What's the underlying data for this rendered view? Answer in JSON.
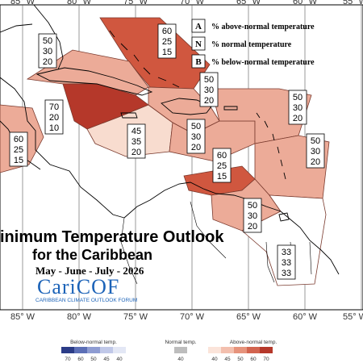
{
  "map": {
    "longitudes_top": [
      "85° W",
      "80° W",
      "75° W",
      "70° W",
      "65° W",
      "60° W",
      "55° W"
    ],
    "longitudes_bottom": [
      "85° W",
      "80° W",
      "75° W",
      "70° W",
      "65° W",
      "60° W",
      "55° W"
    ],
    "title_line1": "inimum Temperature Outlook",
    "title_line2": "for the Caribbean",
    "season": "May - June - July - 2026",
    "logo": "CariCOF",
    "logo_subtitle": "CARIBBEAN CLIMATE OUTLOOK FORUM"
  },
  "key": {
    "items": [
      {
        "letter": "A",
        "text": "% above-normal temperature"
      },
      {
        "letter": "N",
        "text": "% normal temperature"
      },
      {
        "letter": "B",
        "text": "% below-normal temperature"
      }
    ]
  },
  "regions": [
    {
      "id": "north-bahamas",
      "color": "#d0573f",
      "values": [
        "60",
        "25",
        "15"
      ]
    },
    {
      "id": "cuba-north",
      "color": "#ecab98",
      "values": [
        "50",
        "30",
        "20"
      ]
    },
    {
      "id": "jamaica-cayman",
      "color": "#b5382a",
      "values": [
        "70",
        "20",
        "10"
      ]
    },
    {
      "id": "central-america",
      "color": "#ecab98",
      "values": [
        "60",
        "25",
        "15"
      ]
    },
    {
      "id": "southwest-caribbean",
      "color": "#f8dccf",
      "values": [
        "45",
        "35",
        "20"
      ]
    },
    {
      "id": "hispaniola-north",
      "color": "#ecab98",
      "values": [
        "50",
        "30",
        "20"
      ]
    },
    {
      "id": "hispaniola-south",
      "color": "#ecab98",
      "values": [
        "50",
        "30",
        "20"
      ]
    },
    {
      "id": "northern-leewards",
      "color": "#ecab98",
      "values": [
        "50",
        "30",
        "20"
      ]
    },
    {
      "id": "eastern-caribbean",
      "color": "#ecab98",
      "values": [
        "50",
        "30",
        "20"
      ]
    },
    {
      "id": "abc-islands",
      "color": "#d0573f",
      "values": [
        "60",
        "25",
        "15"
      ]
    },
    {
      "id": "trinidad-venezuela",
      "color": "#ecab98",
      "values": [
        "50",
        "30",
        "20"
      ]
    },
    {
      "id": "guianas",
      "color": "#ffffff",
      "values": [
        "33",
        "33",
        "33"
      ]
    }
  ],
  "legend": {
    "below_label": "Below-normal temp.",
    "normal_label": "Normal temp.",
    "above_label": "Above-normal temp.",
    "below_ticks": [
      "70",
      "60",
      "50",
      "45",
      "40"
    ],
    "normal_ticks": [
      "40"
    ],
    "above_ticks": [
      "40",
      "45",
      "50",
      "60",
      "70"
    ],
    "below_colors": [
      "#2b3c87",
      "#5c6fb6",
      "#8e9cd2",
      "#c0c8e8",
      "#e3e7f5"
    ],
    "normal_colors": [
      "#bdbdbd"
    ],
    "above_colors": [
      "#fbe4da",
      "#f3bfae",
      "#e6937c",
      "#d2644f",
      "#b5382a"
    ]
  }
}
